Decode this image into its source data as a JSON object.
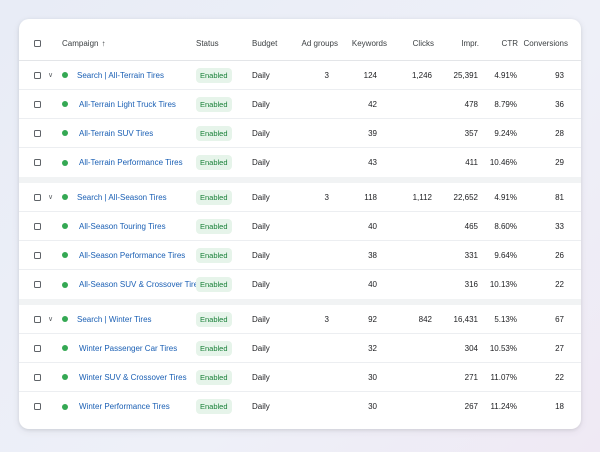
{
  "table": {
    "columns": {
      "campaign": "Campaign",
      "status": "Status",
      "budget": "Budget",
      "ad_groups": "Ad groups",
      "keywords": "Keywords",
      "clicks": "Clicks",
      "impr": "Impr.",
      "ctr": "CTR",
      "conversions": "Conversions"
    },
    "sort_icon": "arrow-up",
    "colors": {
      "enabled_dot": "#34a853",
      "link": "#1a5fb4",
      "badge_bg": "#e6f4ea",
      "badge_text": "#188038"
    },
    "rows": [
      {
        "type": "campaign",
        "name": "Search | All-Terrain Tires",
        "status": "Enabled",
        "budget": "Daily",
        "ad_groups": "3",
        "keywords": "124",
        "clicks": "1,246",
        "impr": "25,391",
        "ctr": "4.91%",
        "conversions": "93"
      },
      {
        "type": "adgroup",
        "name": "All-Terrain Light Truck Tires",
        "status": "Enabled",
        "budget": "Daily",
        "ad_groups": "",
        "keywords": "42",
        "clicks": "",
        "impr": "478",
        "ctr": "8.79%",
        "conversions": "36"
      },
      {
        "type": "adgroup",
        "name": "All-Terrain SUV Tires",
        "status": "Enabled",
        "budget": "Daily",
        "ad_groups": "",
        "keywords": "39",
        "clicks": "",
        "impr": "357",
        "ctr": "9.24%",
        "conversions": "28"
      },
      {
        "type": "adgroup",
        "name": "All-Terrain Performance Tires",
        "status": "Enabled",
        "budget": "Daily",
        "ad_groups": "",
        "keywords": "43",
        "clicks": "",
        "impr": "411",
        "ctr": "10.46%",
        "conversions": "29"
      },
      {
        "type": "campaign",
        "name": "Search | All-Season Tires",
        "status": "Enabled",
        "budget": "Daily",
        "ad_groups": "3",
        "keywords": "118",
        "clicks": "1,112",
        "impr": "22,652",
        "ctr": "4.91%",
        "conversions": "81"
      },
      {
        "type": "adgroup",
        "name": "All-Season Touring Tires",
        "status": "Enabled",
        "budget": "Daily",
        "ad_groups": "",
        "keywords": "40",
        "clicks": "",
        "impr": "465",
        "ctr": "8.60%",
        "conversions": "33"
      },
      {
        "type": "adgroup",
        "name": "All-Season Performance Tires",
        "status": "Enabled",
        "budget": "Daily",
        "ad_groups": "",
        "keywords": "38",
        "clicks": "",
        "impr": "331",
        "ctr": "9.64%",
        "conversions": "26"
      },
      {
        "type": "adgroup",
        "name": "All-Season SUV & Crossover Tires",
        "status": "Enabled",
        "budget": "Daily",
        "ad_groups": "",
        "keywords": "40",
        "clicks": "",
        "impr": "316",
        "ctr": "10.13%",
        "conversions": "22"
      },
      {
        "type": "campaign",
        "name": "Search | Winter Tires",
        "status": "Enabled",
        "budget": "Daily",
        "ad_groups": "3",
        "keywords": "92",
        "clicks": "842",
        "impr": "16,431",
        "ctr": "5.13%",
        "conversions": "67"
      },
      {
        "type": "adgroup",
        "name": "Winter Passenger Car Tires",
        "status": "Enabled",
        "budget": "Daily",
        "ad_groups": "",
        "keywords": "32",
        "clicks": "",
        "impr": "304",
        "ctr": "10.53%",
        "conversions": "27"
      },
      {
        "type": "adgroup",
        "name": "Winter SUV & Crossover Tires",
        "status": "Enabled",
        "budget": "Daily",
        "ad_groups": "",
        "keywords": "30",
        "clicks": "",
        "impr": "271",
        "ctr": "11.07%",
        "conversions": "22"
      },
      {
        "type": "adgroup",
        "name": "Winter Performance Tires",
        "status": "Enabled",
        "budget": "Daily",
        "ad_groups": "",
        "keywords": "30",
        "clicks": "",
        "impr": "267",
        "ctr": "11.24%",
        "conversions": "18"
      }
    ]
  }
}
